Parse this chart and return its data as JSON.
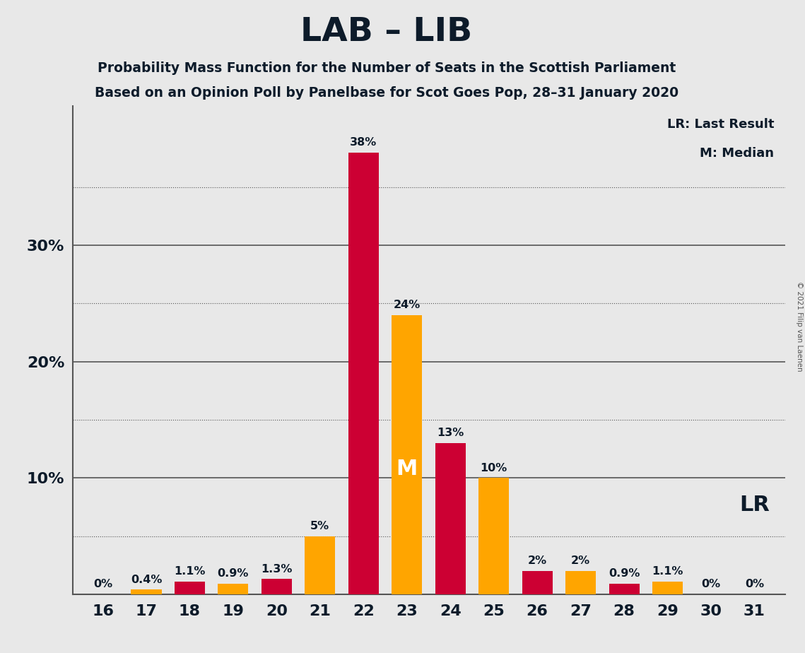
{
  "title": "LAB – LIB",
  "subtitle1": "Probability Mass Function for the Number of Seats in the Scottish Parliament",
  "subtitle2": "Based on an Opinion Poll by Panelbase for Scot Goes Pop, 28–31 January 2020",
  "copyright": "© 2021 Filip van Laenen",
  "seats": [
    16,
    17,
    18,
    19,
    20,
    21,
    22,
    23,
    24,
    25,
    26,
    27,
    28,
    29,
    30,
    31
  ],
  "values": [
    0.0,
    0.4,
    1.1,
    0.9,
    1.3,
    5.0,
    38.0,
    24.0,
    13.0,
    10.0,
    2.0,
    2.0,
    0.9,
    1.1,
    0.0,
    0.0
  ],
  "colors": [
    "#CC0033",
    "#FFA500",
    "#CC0033",
    "#FFA500",
    "#CC0033",
    "#FFA500",
    "#CC0033",
    "#FFA500",
    "#CC0033",
    "#FFA500",
    "#CC0033",
    "#FFA500",
    "#CC0033",
    "#FFA500",
    "#CC0033",
    "#FFA500"
  ],
  "labels": [
    "0%",
    "0.4%",
    "1.1%",
    "0.9%",
    "1.3%",
    "5%",
    "38%",
    "24%",
    "13%",
    "10%",
    "2%",
    "2%",
    "0.9%",
    "1.1%",
    "0%",
    "0%"
  ],
  "lab_color": "#CC0033",
  "lib_color": "#FFA500",
  "background_color": "#E8E8E8",
  "median_idx": 7,
  "lr_idx": 13,
  "ylim": [
    0,
    42
  ],
  "solid_grid": [
    10,
    20,
    30
  ],
  "dotted_grid": [
    5,
    15,
    25,
    35
  ],
  "bar_width": 0.7
}
